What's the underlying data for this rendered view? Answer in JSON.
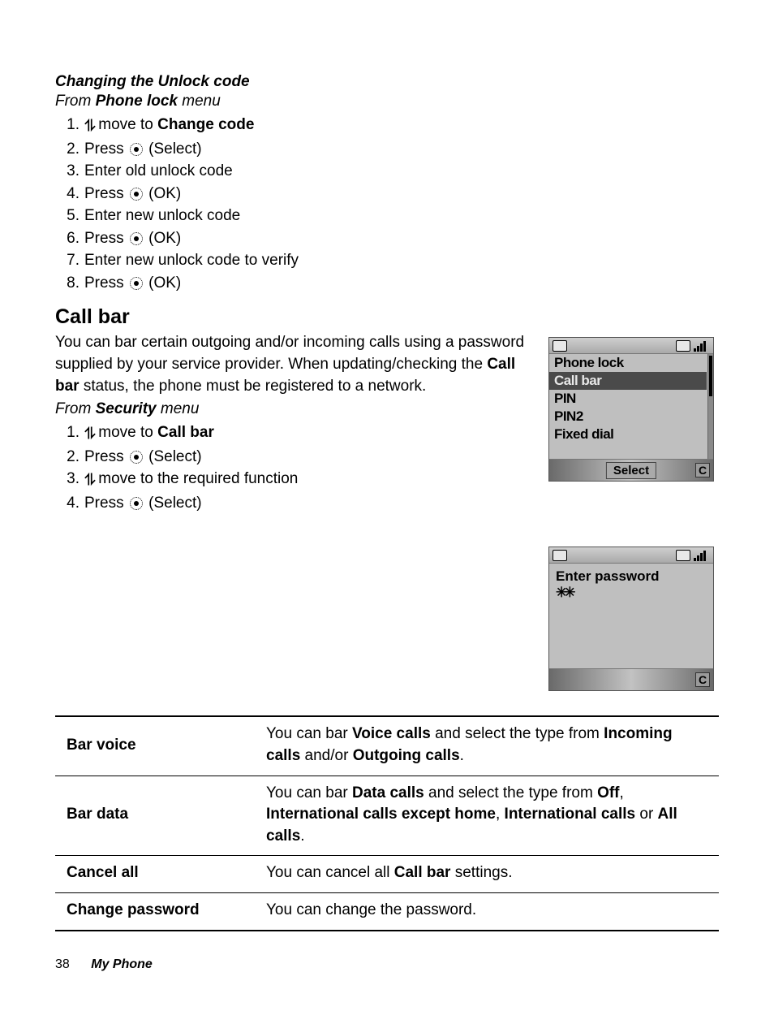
{
  "section1": {
    "title": "Changing the Unlock code",
    "from_prefix": "From ",
    "from_bold": "Phone lock",
    "from_suffix": " menu",
    "steps": [
      {
        "pre": "",
        "icon": "nav",
        "post": " move to ",
        "bold": "Change code",
        "tail": ""
      },
      {
        "pre": "Press ",
        "icon": "select",
        "post": " (Select)"
      },
      {
        "pre": "Enter old unlock code"
      },
      {
        "pre": "Press ",
        "icon": "select",
        "post": " (OK)"
      },
      {
        "pre": "Enter new unlock code"
      },
      {
        "pre": "Press ",
        "icon": "select",
        "post": " (OK)"
      },
      {
        "pre": "Enter new unlock code to verify"
      },
      {
        "pre": "Press ",
        "icon": "select",
        "post": " (OK)"
      }
    ]
  },
  "callbar": {
    "heading": "Call bar",
    "para_parts": [
      "You can bar certain outgoing and/or incoming calls using a password supplied by your service provider. When updating/checking the ",
      "Call bar",
      " status, the phone must be registered to a network."
    ],
    "from_prefix": "From ",
    "from_bold": "Security",
    "from_suffix": " menu",
    "steps": [
      {
        "pre": "",
        "icon": "nav",
        "post": " move to ",
        "bold": "Call bar"
      },
      {
        "pre": "Press ",
        "icon": "select",
        "post": " (Select)"
      },
      {
        "pre": "",
        "icon": "nav",
        "post": " move to the required function"
      },
      {
        "pre": "Press ",
        "icon": "select",
        "post": " (Select)"
      }
    ]
  },
  "phone1": {
    "items": [
      "Phone lock",
      "Call bar",
      "PIN",
      "PIN2",
      "Fixed dial"
    ],
    "highlight_index": 1,
    "soft_center": "Select",
    "soft_right": "C"
  },
  "phone2": {
    "label": "Enter password",
    "stars": "✳✳",
    "soft_right": "C"
  },
  "table": {
    "rows": [
      {
        "h": "Bar voice",
        "parts": [
          "You can bar ",
          "Voice calls",
          " and select the type from ",
          "Incoming calls",
          " and/or ",
          "Outgoing calls",
          "."
        ]
      },
      {
        "h": "Bar data",
        "parts": [
          "You can bar ",
          "Data calls",
          " and select the type from ",
          "Off",
          ", ",
          "International calls except home",
          ", ",
          "International calls",
          " or ",
          "All calls",
          "."
        ]
      },
      {
        "h": "Cancel all",
        "parts": [
          "You can cancel all ",
          "Call bar",
          " settings."
        ]
      },
      {
        "h": "Change password",
        "parts": [
          "You can change the password."
        ]
      }
    ]
  },
  "footer": {
    "page": "38",
    "chapter": "My Phone"
  },
  "icons": {
    "nav_glyph": "⥮"
  },
  "colors": {
    "text": "#000000",
    "bg": "#ffffff",
    "phone_bg": "#bfbfbf",
    "highlight_bg": "#4a4a4a",
    "highlight_fg": "#e8e8e8"
  }
}
